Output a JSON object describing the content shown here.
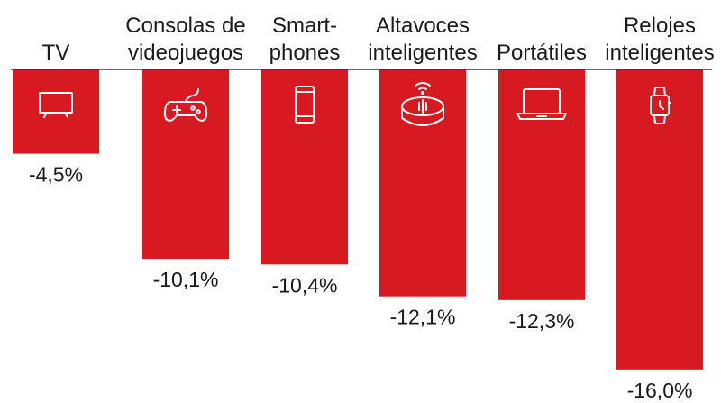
{
  "chart_data": {
    "type": "bar",
    "orientation": "vertical-negative",
    "title": "",
    "xlabel": "",
    "ylabel": "",
    "categories": [
      [
        "TV"
      ],
      [
        "Consolas de",
        "videojuegos"
      ],
      [
        "Smart-",
        "phones"
      ],
      [
        "Altavoces",
        "inteligentes"
      ],
      [
        "Portátiles"
      ],
      [
        "Relojes",
        "inteligentes"
      ]
    ],
    "values": [
      -4.5,
      -10.1,
      -10.4,
      -12.1,
      -12.3,
      -16.0
    ],
    "value_labels": [
      "-4,5%",
      "-10,1%",
      "-10,4%",
      "-12,1%",
      "-12,3%",
      "-16,0%"
    ],
    "icons": [
      "tv-icon",
      "gamepad-icon",
      "smartphone-icon",
      "smart-speaker-icon",
      "laptop-icon",
      "smartwatch-icon"
    ],
    "ylim": [
      -16,
      0
    ],
    "grid": false,
    "bar_color": "#d71921",
    "axis_color": "#333333"
  }
}
